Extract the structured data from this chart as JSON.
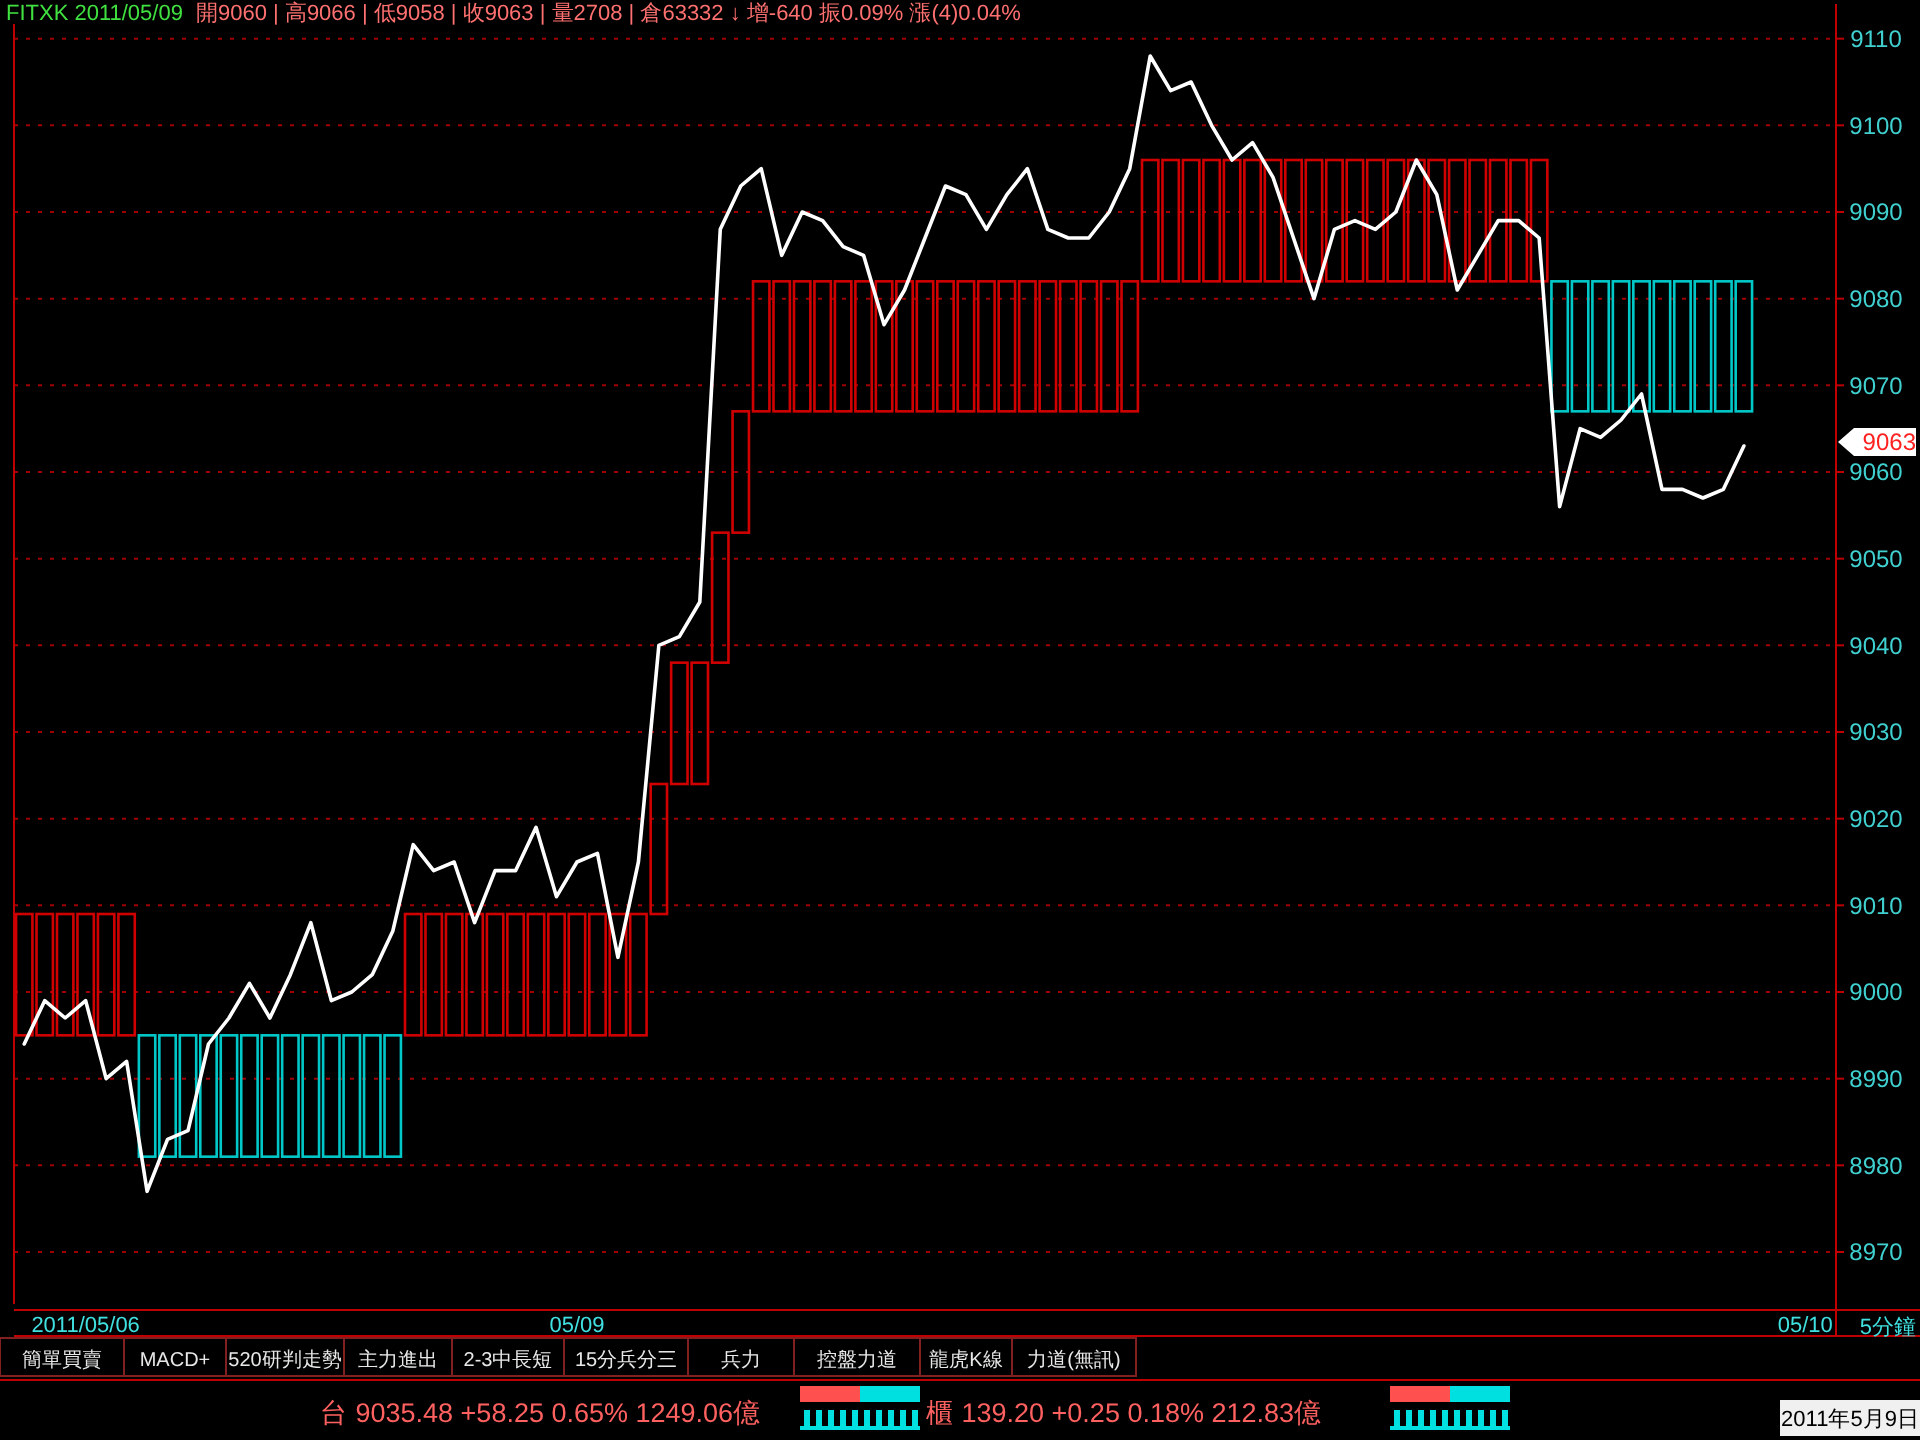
{
  "chart_data": {
    "type": "bar",
    "title": "FITXK 2011/05/09",
    "subtitle": "開9060 | 高9066 | 低9058 | 收9063 | 量2708 | 倉63332 ↓ 增-640 振0.09% 漲(4)0.04%",
    "categories": [
      null,
      null,
      null,
      "2011/05/06",
      null,
      null,
      null,
      null,
      null,
      null,
      null,
      null,
      null,
      null,
      null,
      null,
      null,
      null,
      null,
      null,
      null,
      null,
      null,
      null,
      null,
      null,
      null,
      "05/09",
      null,
      null,
      null,
      null,
      null,
      null,
      null,
      null,
      null,
      null,
      null,
      null,
      null,
      null,
      null,
      null,
      null,
      null,
      null,
      null,
      null,
      null,
      null,
      null,
      null,
      null,
      null,
      null,
      null,
      null,
      null,
      null,
      null,
      null,
      null,
      null,
      null,
      null,
      null,
      null,
      null,
      null,
      null,
      null,
      null,
      null,
      null,
      null,
      null,
      null,
      null,
      null,
      null,
      null,
      null,
      null,
      null,
      null,
      null,
      "05/10",
      null
    ],
    "series": [
      {
        "base": [
          8995,
          8995,
          8995,
          8995,
          8995,
          8995,
          8981,
          8981,
          8981,
          8981,
          8981,
          8981,
          8981,
          8981,
          8981,
          8981,
          8981,
          8981,
          8981,
          8995,
          8995,
          8995,
          8995,
          8995,
          8995,
          8995,
          8995,
          8995,
          8995,
          8995,
          8995,
          9009,
          9024,
          9024,
          9038,
          9053,
          9067,
          9067,
          9067,
          9067,
          9067,
          9067,
          9067,
          9067,
          9067,
          9067,
          9067,
          9067,
          9067,
          9067,
          9067,
          9067,
          9067,
          9067,
          9067,
          9082,
          9082,
          9082,
          9082,
          9082,
          9082,
          9082,
          9082,
          9082,
          9082,
          9082,
          9082,
          9082,
          9082,
          9082,
          9082,
          9082,
          9082,
          9082,
          9082,
          9067,
          9067,
          9067,
          9067,
          9067,
          9067,
          9067,
          9067,
          9067,
          9067,
          null,
          null,
          null,
          null
        ],
        "values": [
          14,
          14,
          14,
          14,
          14,
          14,
          14,
          14,
          14,
          14,
          14,
          14,
          14,
          14,
          14,
          14,
          14,
          14,
          14,
          14,
          14,
          14,
          14,
          14,
          14,
          14,
          14,
          14,
          14,
          14,
          14,
          15,
          14,
          14,
          15,
          14,
          15,
          15,
          15,
          15,
          15,
          15,
          15,
          15,
          15,
          15,
          15,
          15,
          15,
          15,
          15,
          15,
          15,
          15,
          15,
          14,
          14,
          14,
          14,
          14,
          14,
          14,
          14,
          14,
          14,
          14,
          14,
          14,
          14,
          14,
          14,
          14,
          14,
          14,
          14,
          15,
          15,
          15,
          15,
          15,
          15,
          15,
          15,
          15,
          15,
          null,
          null,
          null,
          null
        ],
        "colors": [
          "#d00000",
          "#d00000",
          "#d00000",
          "#d00000",
          "#d00000",
          "#d00000",
          "#00c8c8",
          "#00c8c8",
          "#00c8c8",
          "#00c8c8",
          "#00c8c8",
          "#00c8c8",
          "#00c8c8",
          "#00c8c8",
          "#00c8c8",
          "#00c8c8",
          "#00c8c8",
          "#00c8c8",
          "#00c8c8",
          "#d00000",
          "#d00000",
          "#d00000",
          "#d00000",
          "#d00000",
          "#d00000",
          "#d00000",
          "#d00000",
          "#d00000",
          "#d00000",
          "#d00000",
          "#d00000",
          "#d00000",
          "#d00000",
          "#d00000",
          "#d00000",
          "#d00000",
          "#d00000",
          "#d00000",
          "#d00000",
          "#d00000",
          "#d00000",
          "#d00000",
          "#d00000",
          "#d00000",
          "#d00000",
          "#d00000",
          "#d00000",
          "#d00000",
          "#d00000",
          "#d00000",
          "#d00000",
          "#d00000",
          "#d00000",
          "#d00000",
          "#d00000",
          "#d00000",
          "#d00000",
          "#d00000",
          "#d00000",
          "#d00000",
          "#d00000",
          "#d00000",
          "#d00000",
          "#d00000",
          "#d00000",
          "#d00000",
          "#d00000",
          "#d00000",
          "#d00000",
          "#d00000",
          "#d00000",
          "#d00000",
          "#d00000",
          "#d00000",
          "#d00000",
          "#00c8c8",
          "#00c8c8",
          "#00c8c8",
          "#00c8c8",
          "#00c8c8",
          "#00c8c8",
          "#00c8c8",
          "#00c8c8",
          "#00c8c8",
          "#00c8c8",
          null,
          null,
          null,
          null
        ]
      },
      {
        "type": "line",
        "color": "#ffffff",
        "values": [
          8994,
          8999,
          8997,
          8999,
          8990,
          8992,
          8977,
          8983,
          8984,
          8994,
          8997,
          9001,
          8997,
          9002,
          9008,
          8999,
          9000,
          9002,
          9007,
          9017,
          9014,
          9015,
          9008,
          9014,
          9014,
          9019,
          9011,
          9015,
          9016,
          9004,
          9015,
          9040,
          9041,
          9045,
          9088,
          9093,
          9095,
          9085,
          9090,
          9089,
          9086,
          9085,
          9077,
          9081,
          9087,
          9093,
          9092,
          9088,
          9092,
          9095,
          9088,
          9087,
          9087,
          9090,
          9095,
          9108,
          9104,
          9105,
          9100,
          9096,
          9098,
          9094,
          9087,
          9080,
          9088,
          9089,
          9088,
          9090,
          9096,
          9092,
          9081,
          9085,
          9089,
          9089,
          9087,
          9056,
          9065,
          9064,
          9066,
          9069,
          9058,
          9058,
          9057,
          9058,
          9063,
          null,
          null,
          null,
          null
        ]
      }
    ],
    "ylim": [
      8964,
      9114
    ],
    "yticks": [
      8970,
      8980,
      8990,
      9000,
      9010,
      9020,
      9030,
      9040,
      9050,
      9060,
      9070,
      9080,
      9090,
      9100,
      9110
    ],
    "grid": "y",
    "annotations": [
      "9063",
      "5分鐘",
      "簡單買賣",
      "MACD+",
      "520研判走勢",
      "主力進出",
      "2-3中長短",
      "15分兵分三",
      "兵力",
      "控盤力道",
      "龍虎K線",
      "力道(無訊)",
      "台 9035.48 +58.25 0.65% 1249.06億",
      "櫃 139.20 +0.25 0.18% 212.83億",
      "2011年5月9日"
    ]
  }
}
